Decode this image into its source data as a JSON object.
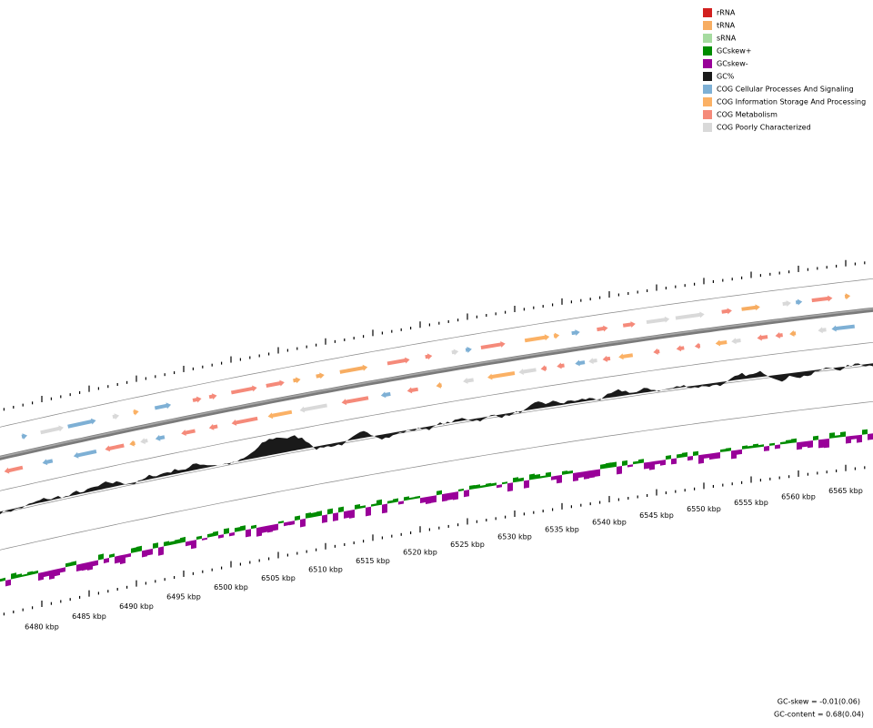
{
  "legend": {
    "items": [
      {
        "label": "rRNA",
        "color": "#d2201f"
      },
      {
        "label": "tRNA",
        "color": "#f7ad62"
      },
      {
        "label": "sRNA",
        "color": "#a6dba0"
      },
      {
        "label": "GCskew+",
        "color": "#008c00"
      },
      {
        "label": "GCskew-",
        "color": "#990099"
      },
      {
        "label": "GC%",
        "color": "#1a1a1a"
      },
      {
        "label": "COG Cellular Processes And Signaling",
        "color": "#7eb0d5"
      },
      {
        "label": "COG Information Storage And Processing",
        "color": "#fbb165"
      },
      {
        "label": "COG Metabolism",
        "color": "#f58a7a"
      },
      {
        "label": "COG Poorly Characterized",
        "color": "#d9d9d9"
      }
    ]
  },
  "axis": {
    "labels": [
      "6480 kbp",
      "6485 kbp",
      "6490 kbp",
      "6495 kbp",
      "6500 kbp",
      "6505 kbp",
      "6510 kbp",
      "6515 kbp",
      "6520 kbp",
      "6525 kbp",
      "6530 kbp",
      "6535 kbp",
      "6540 kbp",
      "6545 kbp",
      "6550 kbp",
      "6555 kbp",
      "6560 kbp",
      "6565 kbp"
    ]
  },
  "footer": {
    "gc_skew": "GC-skew = -0.01(0.06)",
    "gc_content": "GC-content = 0.68(0.04)"
  }
}
